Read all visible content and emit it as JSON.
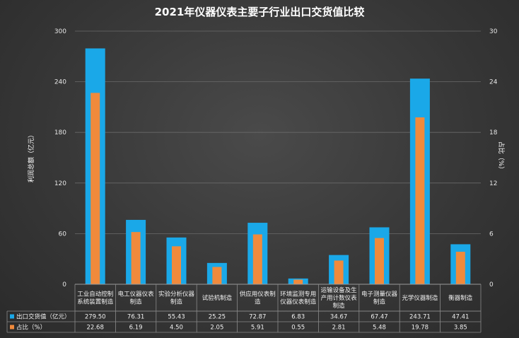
{
  "chart_data": {
    "type": "bar",
    "title": "2021年仪器仪表主要子行业出口交货值比较",
    "ylabel_left": "利润总额（亿元）",
    "ylabel_right": "占比（%）",
    "ylim_left": [
      0,
      300
    ],
    "ylim_right": [
      0,
      30
    ],
    "yticks_left": [
      "0",
      "60",
      "120",
      "180",
      "240",
      "300"
    ],
    "yticks_right": [
      "0",
      "6",
      "12",
      "18",
      "24",
      "30"
    ],
    "grid": true,
    "legend": "table",
    "categories": [
      [
        "工业自动控制",
        "系统装置制造"
      ],
      [
        "电工仪器仪表",
        "制造"
      ],
      [
        "实验分析仪器",
        "制造"
      ],
      [
        "试验机制造"
      ],
      [
        "供应用仪表制",
        "造"
      ],
      [
        "环境监测专用",
        "仪器仪表制造"
      ],
      [
        "运输设备及生",
        "产用计数仪表",
        "制造"
      ],
      [
        "电子测量仪器",
        "制造"
      ],
      [
        "光学仪器制造"
      ],
      [
        "衡器制造"
      ]
    ],
    "series": [
      {
        "name": "出口交货值（亿元）",
        "color": "#1aa8e8",
        "axis": "left",
        "values": [
          279.5,
          76.31,
          55.43,
          25.25,
          72.87,
          6.83,
          34.67,
          67.47,
          243.71,
          47.41
        ],
        "labels": [
          "279.50",
          "76.31",
          "55.43",
          "25.25",
          "72.87",
          "6.83",
          "34.67",
          "67.47",
          "243.71",
          "47.41"
        ]
      },
      {
        "name": "占比（%）",
        "color": "#f08a3c",
        "axis": "right",
        "values": [
          22.68,
          6.19,
          4.5,
          2.05,
          5.91,
          0.55,
          2.81,
          5.48,
          19.78,
          3.85
        ],
        "labels": [
          "22.68",
          "6.19",
          "4.50",
          "2.05",
          "5.91",
          "0.55",
          "2.81",
          "5.48",
          "19.78",
          "3.85"
        ]
      }
    ]
  }
}
